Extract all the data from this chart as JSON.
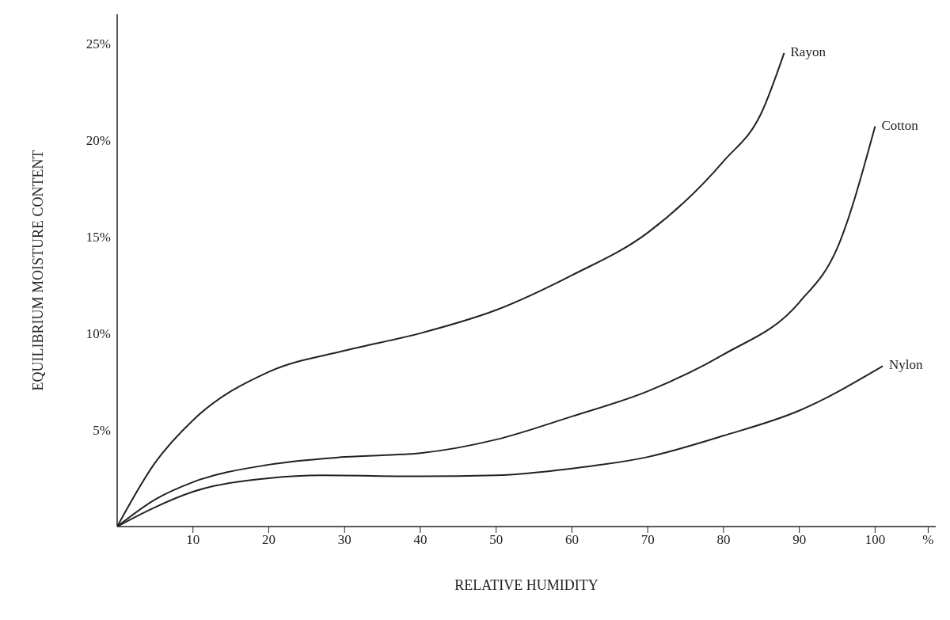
{
  "chart_data": {
    "type": "line",
    "xlabel": "RELATIVE HUMIDITY",
    "ylabel": "EQUILIBRIUM MOISTURE CONTENT",
    "xlim": [
      0,
      108
    ],
    "xticks": [
      10,
      20,
      30,
      40,
      50,
      60,
      70,
      80,
      90,
      100,
      {
        "value": 107,
        "label": "%"
      }
    ],
    "ylim": [
      0,
      26.5
    ],
    "yticks": [
      {
        "value": 5,
        "label": "5%"
      },
      {
        "value": 10,
        "label": "10%"
      },
      {
        "value": 15,
        "label": "15%"
      },
      {
        "value": 20,
        "label": "20%"
      },
      {
        "value": 25,
        "label": "25%"
      }
    ],
    "grid": false,
    "legend": false,
    "marker": "none",
    "line_style": "solid",
    "series": [
      {
        "name": "Rayon",
        "color": "#222222",
        "x": [
          0,
          5,
          10,
          20,
          30,
          40,
          50,
          60,
          70,
          80,
          85,
          88
        ],
        "values": [
          0,
          3.3,
          5.5,
          8.0,
          9.1,
          10.0,
          11.2,
          13.0,
          15.2,
          18.9,
          21.4,
          24.5
        ]
      },
      {
        "name": "Cotton",
        "color": "#222222",
        "x": [
          0,
          5,
          10,
          20,
          30,
          40,
          50,
          60,
          70,
          80,
          90,
          95,
          100
        ],
        "values": [
          0,
          1.4,
          2.3,
          3.2,
          3.6,
          3.8,
          4.5,
          5.7,
          7.0,
          8.9,
          11.6,
          14.4,
          20.7
        ]
      },
      {
        "name": "Nylon",
        "color": "#222222",
        "x": [
          0,
          5,
          10,
          20,
          27,
          40,
          50,
          60,
          70,
          80,
          90,
          101
        ],
        "values": [
          0,
          1.0,
          1.8,
          2.5,
          2.65,
          2.6,
          2.65,
          3.0,
          3.6,
          4.7,
          6.0,
          8.3
        ]
      }
    ]
  }
}
